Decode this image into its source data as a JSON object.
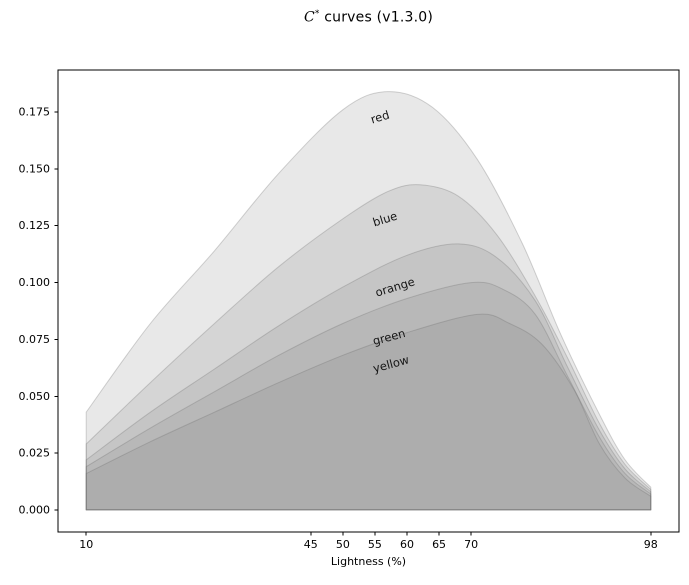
{
  "figure": {
    "title_parts": {
      "c": "C",
      "sup": "*",
      "rest": " curves (v1.3.0)"
    }
  },
  "chart_data": {
    "type": "area",
    "title": "C* curves (v1.3.0)",
    "xlabel": "Lightness (%)",
    "ylabel": "",
    "grid": false,
    "legend": "inline-curve-labels",
    "xlim": [
      5.6,
      102.4
    ],
    "ylim": [
      -0.0097,
      0.1935
    ],
    "baseline": 0.0,
    "fill_color": "#808080",
    "fill_alpha": 0.18,
    "edge_color": "rgba(100,100,100,0.28)",
    "label_color": "#161616",
    "x_ticks": [
      {
        "value": 10,
        "label": "10"
      },
      {
        "value": 45,
        "label": "45"
      },
      {
        "value": 50,
        "label": "50"
      },
      {
        "value": 55,
        "label": "55"
      },
      {
        "value": 60,
        "label": "60"
      },
      {
        "value": 65,
        "label": "65"
      },
      {
        "value": 70,
        "label": "70"
      },
      {
        "value": 98,
        "label": "98"
      }
    ],
    "y_ticks": [
      {
        "value": 0.0,
        "label": "0.000"
      },
      {
        "value": 0.025,
        "label": "0.025"
      },
      {
        "value": 0.05,
        "label": "0.050"
      },
      {
        "value": 0.075,
        "label": "0.075"
      },
      {
        "value": 0.1,
        "label": "0.100"
      },
      {
        "value": 0.125,
        "label": "0.125"
      },
      {
        "value": 0.15,
        "label": "0.150"
      },
      {
        "value": 0.175,
        "label": "0.175"
      }
    ],
    "series": [
      {
        "name": "red",
        "peak": {
          "x": 57,
          "y": 0.184
        },
        "label": {
          "x": 55.8,
          "y": 0.173,
          "rotation": -17
        },
        "points": [
          [
            10,
            0.043
          ],
          [
            20,
            0.082
          ],
          [
            30,
            0.114
          ],
          [
            40,
            0.148
          ],
          [
            50,
            0.176
          ],
          [
            57,
            0.184
          ],
          [
            64,
            0.177
          ],
          [
            71,
            0.154
          ],
          [
            78,
            0.117
          ],
          [
            84,
            0.077
          ],
          [
            90,
            0.042
          ],
          [
            94,
            0.022
          ],
          [
            98,
            0.01
          ]
        ]
      },
      {
        "name": "blue",
        "peak": {
          "x": 62,
          "y": 0.143
        },
        "label": {
          "x": 56.6,
          "y": 0.128,
          "rotation": -17
        },
        "points": [
          [
            10,
            0.029
          ],
          [
            20,
            0.056
          ],
          [
            30,
            0.082
          ],
          [
            40,
            0.107
          ],
          [
            50,
            0.128
          ],
          [
            57,
            0.14
          ],
          [
            62,
            0.143
          ],
          [
            68,
            0.138
          ],
          [
            74,
            0.121
          ],
          [
            80,
            0.094
          ],
          [
            85,
            0.067
          ],
          [
            90,
            0.038
          ],
          [
            94,
            0.02
          ],
          [
            98,
            0.009
          ]
        ]
      },
      {
        "name": "orange",
        "peak": {
          "x": 68,
          "y": 0.117
        },
        "label": {
          "x": 58.1,
          "y": 0.098,
          "rotation": -17
        },
        "points": [
          [
            10,
            0.022
          ],
          [
            20,
            0.043
          ],
          [
            30,
            0.062
          ],
          [
            40,
            0.081
          ],
          [
            50,
            0.098
          ],
          [
            60,
            0.112
          ],
          [
            68,
            0.117
          ],
          [
            74,
            0.111
          ],
          [
            80,
            0.092
          ],
          [
            85,
            0.063
          ],
          [
            90,
            0.035
          ],
          [
            94,
            0.018
          ],
          [
            98,
            0.008
          ]
        ]
      },
      {
        "name": "green",
        "peak": {
          "x": 70,
          "y": 0.1
        },
        "label": {
          "x": 57.2,
          "y": 0.076,
          "rotation": -15
        },
        "points": [
          [
            10,
            0.019
          ],
          [
            20,
            0.036
          ],
          [
            30,
            0.052
          ],
          [
            40,
            0.068
          ],
          [
            50,
            0.082
          ],
          [
            60,
            0.093
          ],
          [
            70,
            0.1
          ],
          [
            75,
            0.097
          ],
          [
            80,
            0.086
          ],
          [
            85,
            0.059
          ],
          [
            90,
            0.032
          ],
          [
            94,
            0.016
          ],
          [
            98,
            0.007
          ]
        ]
      },
      {
        "name": "yellow",
        "peak": {
          "x": 71,
          "y": 0.086
        },
        "label": {
          "x": 57.5,
          "y": 0.064,
          "rotation": -15
        },
        "points": [
          [
            10,
            0.016
          ],
          [
            20,
            0.03
          ],
          [
            30,
            0.043
          ],
          [
            40,
            0.056
          ],
          [
            50,
            0.068
          ],
          [
            60,
            0.078
          ],
          [
            71,
            0.086
          ],
          [
            76,
            0.082
          ],
          [
            81,
            0.073
          ],
          [
            86,
            0.053
          ],
          [
            90,
            0.029
          ],
          [
            94,
            0.014
          ],
          [
            98,
            0.006
          ]
        ]
      }
    ]
  }
}
